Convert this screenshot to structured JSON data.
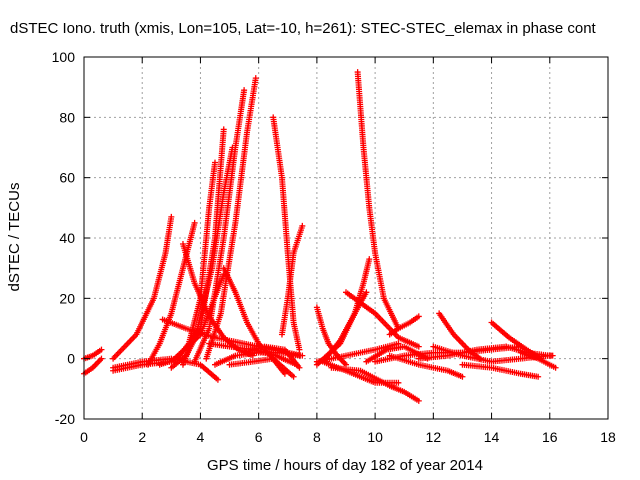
{
  "chart_data": {
    "type": "scatter",
    "title": "dSTEC Iono. truth (xmis, Lon=105, Lat=-10, h=261): STEC-STEC_elemax in phase cont",
    "xlabel": "GPS time / hours of day 182 of year 2014",
    "ylabel": "dSTEC  / TECUs",
    "xlim": [
      0,
      18
    ],
    "ylim": [
      -20,
      100
    ],
    "xticks": [
      "0",
      "2",
      "4",
      "6",
      "8",
      "10",
      "12",
      "14",
      "16",
      "18"
    ],
    "yticks": [
      "-20",
      "0",
      "20",
      "40",
      "60",
      "80",
      "100"
    ],
    "grid": true,
    "marker": "plus",
    "color": "#ff0000",
    "series": [
      {
        "x": [
          0.0,
          0.3,
          0.6
        ],
        "y": [
          -5,
          -3,
          0
        ]
      },
      {
        "x": [
          0.0,
          0.3,
          0.6
        ],
        "y": [
          0,
          1,
          3
        ]
      },
      {
        "x": [
          1.0,
          1.8,
          2.4,
          2.8,
          3.0
        ],
        "y": [
          0,
          8,
          20,
          35,
          47
        ]
      },
      {
        "x": [
          1.0,
          2.0,
          3.0,
          4.0,
          4.8
        ],
        "y": [
          -4,
          -2,
          -1,
          8,
          28
        ]
      },
      {
        "x": [
          1.0,
          2.0,
          3.0,
          4.0,
          4.6
        ],
        "y": [
          -3,
          -1,
          0,
          -2,
          -7
        ]
      },
      {
        "x": [
          2.2,
          2.6,
          3.0,
          3.4,
          3.8
        ],
        "y": [
          -2,
          5,
          15,
          30,
          45
        ]
      },
      {
        "x": [
          2.6,
          3.2,
          3.6,
          4.0,
          4.3,
          4.5
        ],
        "y": [
          -2,
          0,
          5,
          20,
          50,
          65
        ]
      },
      {
        "x": [
          3.0,
          3.5,
          4.0,
          4.5,
          4.8
        ],
        "y": [
          -3,
          1,
          10,
          40,
          76
        ]
      },
      {
        "x": [
          3.4,
          3.9,
          4.4,
          4.8,
          5.1
        ],
        "y": [
          -2,
          10,
          30,
          55,
          70
        ]
      },
      {
        "x": [
          3.8,
          4.3,
          4.8,
          5.2,
          5.5
        ],
        "y": [
          -1,
          10,
          40,
          70,
          89
        ]
      },
      {
        "x": [
          4.2,
          4.7,
          5.2,
          5.6,
          5.9
        ],
        "y": [
          0,
          15,
          45,
          75,
          93
        ]
      },
      {
        "x": [
          2.7,
          3.5,
          4.5,
          5.5,
          6.5,
          7.5
        ],
        "y": [
          13,
          10,
          7,
          5,
          3,
          1
        ]
      },
      {
        "x": [
          3.4,
          3.8,
          4.3,
          4.8,
          5.3,
          5.8
        ],
        "y": [
          38,
          25,
          14,
          7,
          3,
          1
        ]
      },
      {
        "x": [
          4.8,
          5.2,
          5.6,
          6.0,
          6.4,
          6.9
        ],
        "y": [
          30,
          22,
          12,
          5,
          1,
          -5
        ]
      },
      {
        "x": [
          4.3,
          5.0,
          5.8,
          6.6,
          7.3
        ],
        "y": [
          5,
          4,
          3,
          1,
          -2
        ]
      },
      {
        "x": [
          4.5,
          5.2,
          6.0,
          6.8,
          7.4
        ],
        "y": [
          -2,
          1,
          2,
          2,
          1
        ]
      },
      {
        "x": [
          5.0,
          5.8,
          6.5,
          7.2
        ],
        "y": [
          -2,
          -1,
          0,
          -6
        ]
      },
      {
        "x": [
          6.5,
          6.8,
          7.0,
          7.2,
          7.4
        ],
        "y": [
          80,
          60,
          35,
          12,
          3
        ]
      },
      {
        "x": [
          6.8,
          7.0,
          7.2,
          7.5
        ],
        "y": [
          8,
          20,
          35,
          44
        ]
      },
      {
        "x": [
          5.5,
          6.2,
          6.9,
          7.4
        ],
        "y": [
          2,
          4,
          3,
          -3
        ]
      },
      {
        "x": [
          8.0,
          8.2,
          8.4,
          8.7,
          9.0
        ],
        "y": [
          17,
          10,
          5,
          1,
          -2
        ]
      },
      {
        "x": [
          8.0,
          9.0,
          10.0,
          10.8
        ],
        "y": [
          -1,
          1,
          3,
          5
        ]
      },
      {
        "x": [
          8.0,
          8.8,
          9.3,
          9.6,
          9.8
        ],
        "y": [
          -2,
          5,
          15,
          25,
          33
        ]
      },
      {
        "x": [
          8.3,
          8.8,
          9.3,
          9.7
        ],
        "y": [
          0,
          6,
          15,
          22
        ]
      },
      {
        "x": [
          9.4,
          9.6,
          9.8,
          10.0,
          10.3,
          10.8
        ],
        "y": [
          95,
          70,
          50,
          35,
          20,
          10
        ]
      },
      {
        "x": [
          8.5,
          9.5,
          10.5,
          11.0,
          11.5
        ],
        "y": [
          -3,
          -4,
          -9,
          -11,
          -14
        ]
      },
      {
        "x": [
          8.2,
          9.0,
          10.0,
          10.8
        ],
        "y": [
          -1,
          -4,
          -8,
          -8
        ]
      },
      {
        "x": [
          9.0,
          10.0,
          10.8,
          11.5
        ],
        "y": [
          22,
          15,
          7,
          4
        ]
      },
      {
        "x": [
          9.7,
          10.4,
          11.0,
          11.8
        ],
        "y": [
          -1,
          3,
          4,
          0
        ]
      },
      {
        "x": [
          10.0,
          11.0,
          12.0,
          13.0,
          14.0,
          15.0
        ],
        "y": [
          -1,
          1,
          2,
          2,
          3,
          4
        ]
      },
      {
        "x": [
          10.5,
          10.8,
          11.2,
          11.5
        ],
        "y": [
          8,
          10,
          12,
          14
        ]
      },
      {
        "x": [
          10.5,
          11.5,
          12.5,
          13.0
        ],
        "y": [
          1,
          -2,
          -4,
          -6
        ]
      },
      {
        "x": [
          11.5,
          12.5,
          13.5,
          14.5
        ],
        "y": [
          0,
          1,
          3,
          4
        ]
      },
      {
        "x": [
          12.2,
          12.7,
          13.2,
          13.6
        ],
        "y": [
          15,
          8,
          3,
          0
        ]
      },
      {
        "x": [
          12.0,
          13.0,
          14.0,
          15.0,
          16.0
        ],
        "y": [
          4,
          1,
          -1,
          0,
          1
        ]
      },
      {
        "x": [
          13.0,
          14.0,
          15.0,
          15.6
        ],
        "y": [
          -2,
          -3,
          -5,
          -6
        ]
      },
      {
        "x": [
          14.0,
          14.6,
          15.2,
          15.7
        ],
        "y": [
          12,
          7,
          3,
          0
        ]
      },
      {
        "x": [
          14.5,
          15.2,
          16.0,
          16.1
        ],
        "y": [
          4,
          2,
          1,
          1
        ]
      },
      {
        "x": [
          15.0,
          15.6,
          16.2
        ],
        "y": [
          2,
          0,
          -3
        ]
      }
    ]
  }
}
